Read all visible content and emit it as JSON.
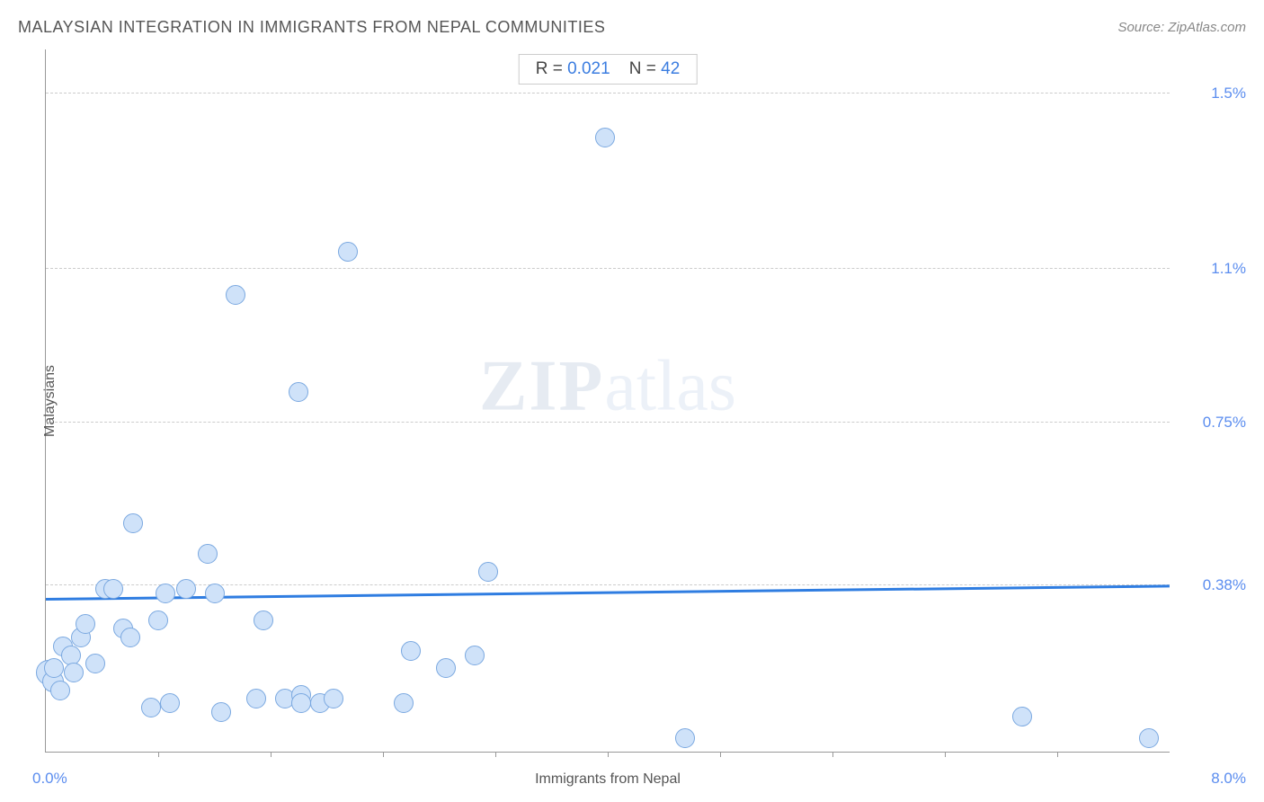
{
  "title": "MALAYSIAN INTEGRATION IN IMMIGRANTS FROM NEPAL COMMUNITIES",
  "source": "Source: ZipAtlas.com",
  "stats": {
    "r_label": "R = ",
    "r_value": "0.021",
    "n_label": "N = ",
    "n_value": "42"
  },
  "watermark": {
    "bold": "ZIP",
    "rest": "atlas"
  },
  "chart": {
    "type": "scatter",
    "xlabel": "Immigrants from Nepal",
    "ylabel": "Malaysians",
    "xlim": [
      0.0,
      8.0
    ],
    "ylim": [
      0.0,
      1.6
    ],
    "xmin_label": "0.0%",
    "xmax_label": "8.0%",
    "xticks": [
      0.8,
      1.6,
      2.4,
      3.2,
      4.0,
      4.8,
      5.6,
      6.4,
      7.2
    ],
    "yticks": [
      {
        "value": 0.38,
        "label": "0.38%"
      },
      {
        "value": 0.75,
        "label": "0.75%"
      },
      {
        "value": 1.1,
        "label": "1.1%"
      },
      {
        "value": 1.5,
        "label": "1.5%"
      }
    ],
    "background_color": "#ffffff",
    "grid_color": "#cccccc",
    "axis_color": "#999999",
    "marker_fill": "#cfe2f9",
    "marker_stroke": "#7aa8e0",
    "marker_radius": 11,
    "line_color": "#2f7de1",
    "line_width": 3,
    "regression": {
      "y_at_xmin": 0.345,
      "y_at_xmax": 0.375
    },
    "points": [
      {
        "x": 0.02,
        "y": 0.18,
        "r": 14
      },
      {
        "x": 0.05,
        "y": 0.16,
        "r": 12
      },
      {
        "x": 0.06,
        "y": 0.19,
        "r": 11
      },
      {
        "x": 0.1,
        "y": 0.14,
        "r": 11
      },
      {
        "x": 0.12,
        "y": 0.24,
        "r": 11
      },
      {
        "x": 0.18,
        "y": 0.22,
        "r": 11
      },
      {
        "x": 0.2,
        "y": 0.18,
        "r": 11
      },
      {
        "x": 0.25,
        "y": 0.26,
        "r": 11
      },
      {
        "x": 0.28,
        "y": 0.29,
        "r": 11
      },
      {
        "x": 0.42,
        "y": 0.37,
        "r": 11
      },
      {
        "x": 0.48,
        "y": 0.37,
        "r": 11
      },
      {
        "x": 0.55,
        "y": 0.28,
        "r": 11
      },
      {
        "x": 0.6,
        "y": 0.26,
        "r": 11
      },
      {
        "x": 0.62,
        "y": 0.52,
        "r": 11
      },
      {
        "x": 0.75,
        "y": 0.1,
        "r": 11
      },
      {
        "x": 0.8,
        "y": 0.3,
        "r": 11
      },
      {
        "x": 0.85,
        "y": 0.36,
        "r": 11
      },
      {
        "x": 0.88,
        "y": 0.11,
        "r": 11
      },
      {
        "x": 1.0,
        "y": 0.37,
        "r": 11
      },
      {
        "x": 1.15,
        "y": 0.45,
        "r": 11
      },
      {
        "x": 1.2,
        "y": 0.36,
        "r": 11
      },
      {
        "x": 1.25,
        "y": 0.09,
        "r": 11
      },
      {
        "x": 1.35,
        "y": 1.04,
        "r": 11
      },
      {
        "x": 1.5,
        "y": 0.12,
        "r": 11
      },
      {
        "x": 1.55,
        "y": 0.3,
        "r": 11
      },
      {
        "x": 1.7,
        "y": 0.12,
        "r": 11
      },
      {
        "x": 1.8,
        "y": 0.82,
        "r": 11
      },
      {
        "x": 1.82,
        "y": 0.13,
        "r": 11
      },
      {
        "x": 1.82,
        "y": 0.11,
        "r": 11
      },
      {
        "x": 1.95,
        "y": 0.11,
        "r": 11
      },
      {
        "x": 2.05,
        "y": 0.12,
        "r": 11
      },
      {
        "x": 2.15,
        "y": 1.14,
        "r": 11
      },
      {
        "x": 2.55,
        "y": 0.11,
        "r": 11
      },
      {
        "x": 2.6,
        "y": 0.23,
        "r": 11
      },
      {
        "x": 2.85,
        "y": 0.19,
        "r": 11
      },
      {
        "x": 3.05,
        "y": 0.22,
        "r": 11
      },
      {
        "x": 3.15,
        "y": 0.41,
        "r": 11
      },
      {
        "x": 3.98,
        "y": 1.4,
        "r": 11
      },
      {
        "x": 4.55,
        "y": 0.03,
        "r": 11
      },
      {
        "x": 6.95,
        "y": 0.08,
        "r": 11
      },
      {
        "x": 7.85,
        "y": 0.03,
        "r": 11
      },
      {
        "x": 0.35,
        "y": 0.2,
        "r": 11
      }
    ]
  }
}
